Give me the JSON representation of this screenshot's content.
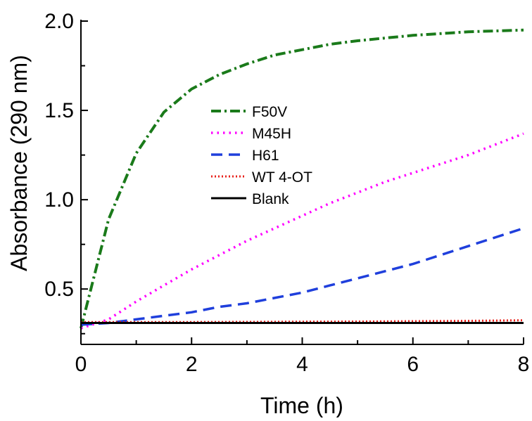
{
  "chart_data": {
    "type": "line",
    "xlabel": "Time (h)",
    "ylabel": "Absorbance (290 nm)",
    "xlim": [
      0,
      8
    ],
    "ylim": [
      0.19,
      2.0
    ],
    "x_ticks": [
      0,
      2,
      4,
      6,
      8
    ],
    "x_tick_labels": [
      "0",
      "2",
      "4",
      "6",
      "8"
    ],
    "y_ticks": [
      0.5,
      1.0,
      1.5,
      2.0
    ],
    "y_tick_labels": [
      "0.5",
      "1.0",
      "1.5",
      "2.0"
    ],
    "grid": false,
    "legend_position": "center",
    "series": [
      {
        "name": "F50V",
        "color": "#1a7a1a",
        "dash": "dashdot",
        "x": [
          0,
          0.5,
          1.0,
          1.5,
          2.0,
          2.5,
          3.0,
          3.5,
          4.0,
          4.5,
          5.0,
          5.5,
          6.0,
          6.5,
          7.0,
          7.5,
          8.0
        ],
        "y": [
          0.28,
          0.89,
          1.26,
          1.49,
          1.62,
          1.7,
          1.76,
          1.81,
          1.84,
          1.87,
          1.89,
          1.905,
          1.92,
          1.93,
          1.94,
          1.945,
          1.95
        ]
      },
      {
        "name": "M45H",
        "color": "#ff00ff",
        "dash": "dot",
        "x": [
          0,
          0.5,
          1.0,
          1.5,
          2.0,
          2.5,
          3.0,
          3.5,
          4.0,
          4.5,
          5.0,
          5.5,
          6.0,
          6.5,
          7.0,
          7.5,
          8.0
        ],
        "y": [
          0.28,
          0.33,
          0.43,
          0.52,
          0.61,
          0.69,
          0.77,
          0.84,
          0.91,
          0.98,
          1.04,
          1.1,
          1.15,
          1.2,
          1.25,
          1.31,
          1.37
        ]
      },
      {
        "name": "H61",
        "color": "#1f3fdc",
        "dash": "dash",
        "x": [
          0,
          0.5,
          1.0,
          1.5,
          2.0,
          2.5,
          3.0,
          3.5,
          4.0,
          4.5,
          5.0,
          5.5,
          6.0,
          6.5,
          7.0,
          7.5,
          8.0
        ],
        "y": [
          0.3,
          0.31,
          0.33,
          0.35,
          0.37,
          0.4,
          0.42,
          0.45,
          0.48,
          0.52,
          0.56,
          0.6,
          0.64,
          0.69,
          0.74,
          0.79,
          0.84
        ]
      },
      {
        "name": "WT 4-OT",
        "color": "#e8221b",
        "dash": "densedot",
        "x": [
          0,
          1,
          2,
          3,
          4,
          5,
          6,
          7,
          8
        ],
        "y": [
          0.315,
          0.315,
          0.315,
          0.316,
          0.317,
          0.318,
          0.32,
          0.322,
          0.325
        ]
      },
      {
        "name": "Blank",
        "color": "#000000",
        "dash": "solid",
        "x": [
          0,
          1,
          2,
          3,
          4,
          5,
          6,
          7,
          8
        ],
        "y": [
          0.31,
          0.31,
          0.31,
          0.31,
          0.31,
          0.31,
          0.31,
          0.31,
          0.31
        ]
      }
    ]
  }
}
